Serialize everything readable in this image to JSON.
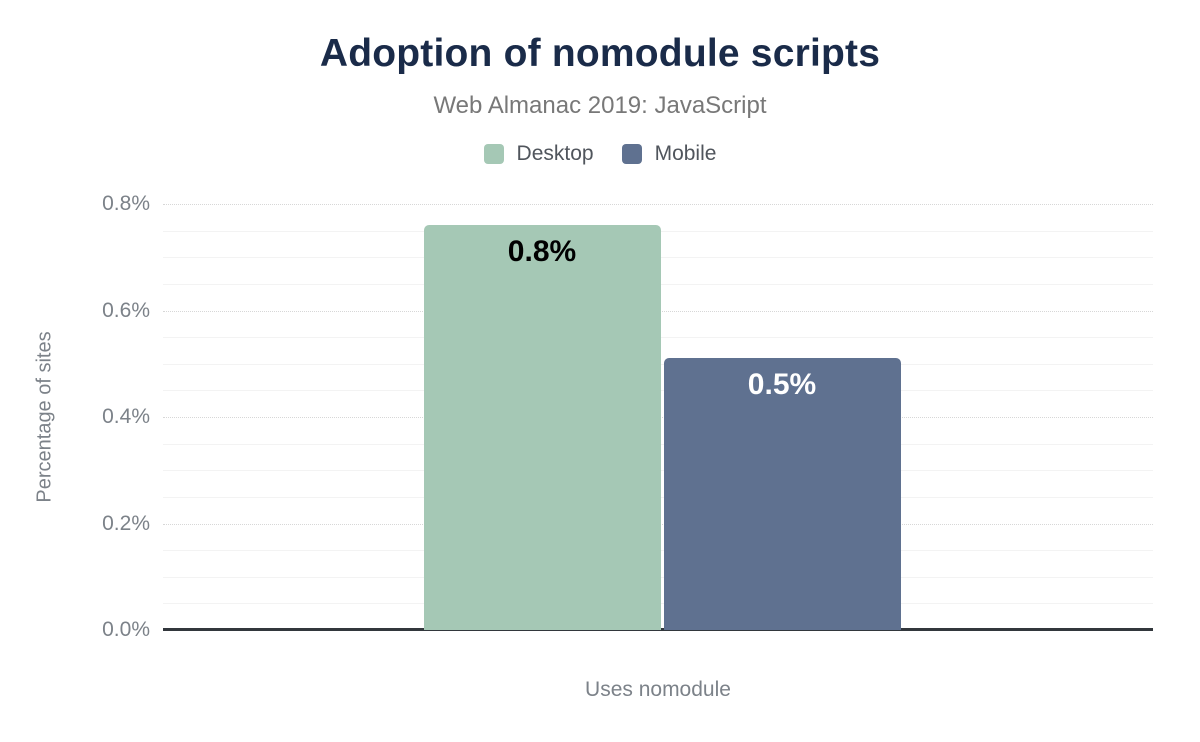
{
  "chart_data": {
    "type": "bar",
    "title": "Adoption of nomodule scripts",
    "subtitle": "Web Almanac 2019: JavaScript",
    "categories": [
      "Uses nomodule"
    ],
    "series": [
      {
        "name": "Desktop",
        "values": [
          0.76
        ],
        "display_labels": [
          "0.8%"
        ],
        "color": "#a5c8b5",
        "label_color": "#000000"
      },
      {
        "name": "Mobile",
        "values": [
          0.51
        ],
        "display_labels": [
          "0.5%"
        ],
        "color": "#5f7190",
        "label_color": "#ffffff"
      }
    ],
    "xlabel": "Uses nomodule",
    "ylabel": "Percentage of sites",
    "ylim": [
      0,
      0.8
    ],
    "y_major_step": 0.2,
    "y_minor_step": 0.05,
    "ytick_labels": [
      "0.0%",
      "0.2%",
      "0.4%",
      "0.6%",
      "0.8%"
    ],
    "grid": true,
    "legend_position": "top",
    "colors": {
      "title": "#1a2b49",
      "subtitle": "#787878",
      "axis_line": "#32373c",
      "tick_label": "#7c8289"
    }
  }
}
